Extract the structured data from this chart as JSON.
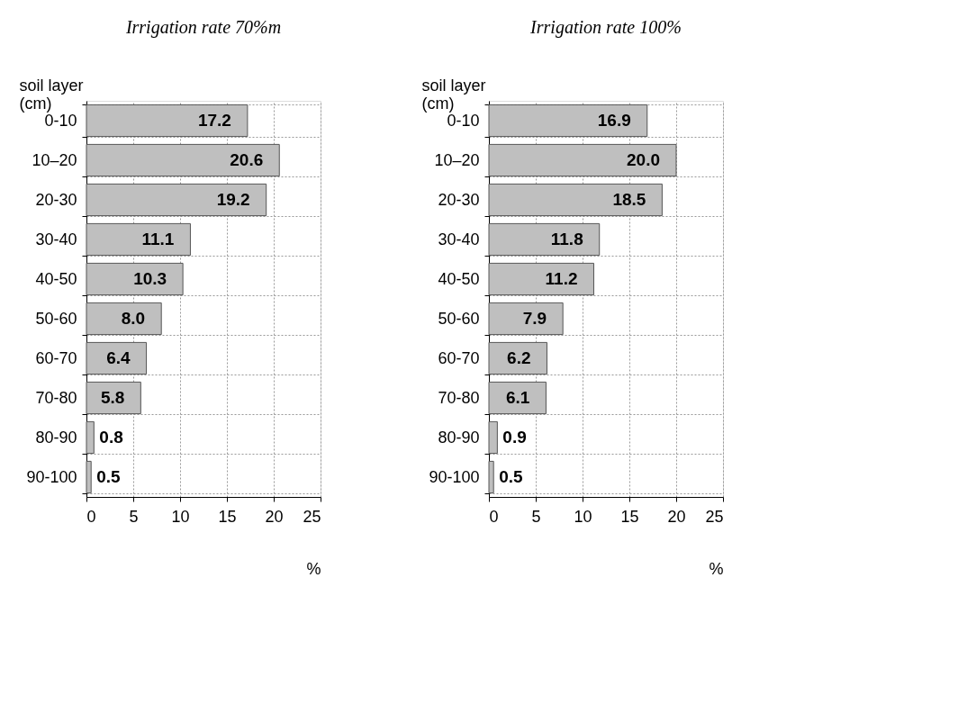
{
  "chart_data": [
    {
      "type": "bar",
      "orientation": "horizontal",
      "title": "Irrigation rate 70%m",
      "ylabel": "soil layer\n(cm)",
      "xlabel": "%",
      "categories": [
        "0-10",
        "10–20",
        "20-30",
        "30-40",
        "40-50",
        "50-60",
        "60-70",
        "70-80",
        "80-90",
        "90-100"
      ],
      "values": [
        17.2,
        20.6,
        19.2,
        11.1,
        10.3,
        8.0,
        6.4,
        5.8,
        0.8,
        0.5
      ],
      "color": "#bfbfbf",
      "value_labels": [
        "17.2",
        "20.6",
        "19.2",
        "11.1",
        "10.3",
        "8.0",
        "6.4",
        "5.8",
        "0.8",
        "0.5"
      ],
      "xlim": [
        0,
        25
      ],
      "xticks": [
        0,
        5,
        10,
        15,
        20,
        25
      ],
      "grid": true
    },
    {
      "type": "bar",
      "orientation": "horizontal",
      "title": "Irrigation rate 100%",
      "ylabel": "soil layer\n(cm)",
      "xlabel": "%",
      "categories": [
        "0-10",
        "10–20",
        "20-30",
        "30-40",
        "40-50",
        "50-60",
        "60-70",
        "70-80",
        "80-90",
        "90-100"
      ],
      "values": [
        16.9,
        20.0,
        18.5,
        11.8,
        11.2,
        7.9,
        6.2,
        6.1,
        0.9,
        0.5
      ],
      "color": "#bfbfbf",
      "value_labels": [
        "16.9",
        "20.0",
        "18.5",
        "11.8",
        "11.2",
        "7.9",
        "6.2",
        "6.1",
        "0.9",
        "0.5"
      ],
      "xlim": [
        0,
        25
      ],
      "xticks": [
        0,
        5,
        10,
        15,
        20,
        25
      ],
      "grid": true
    }
  ]
}
